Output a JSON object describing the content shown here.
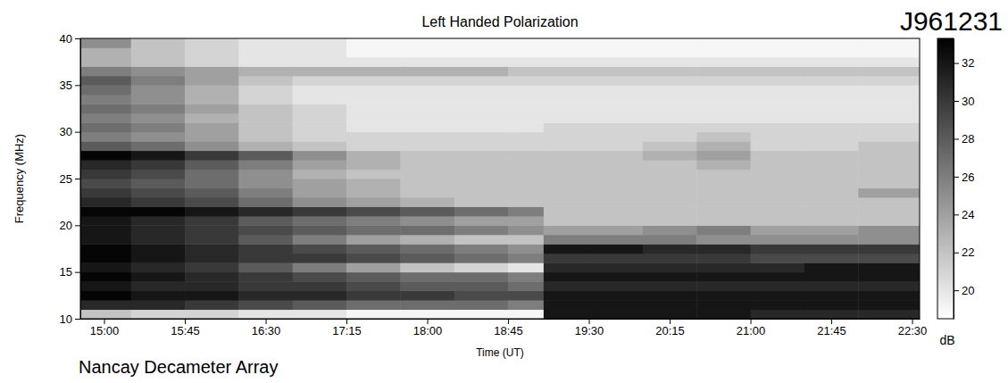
{
  "chart_data": {
    "type": "heatmap",
    "title": "Left Handed Polarization",
    "annotations": [
      "J961231",
      "Nancay Decameter Array"
    ],
    "x_label": "Time (UT)",
    "y_label": "Frequency (MHz)",
    "xlim": [
      14.78,
      22.57
    ],
    "xticks": [
      {
        "value": 15,
        "label": "15:00"
      },
      {
        "value": 15.75,
        "label": "15:45"
      },
      {
        "value": 16.5,
        "label": "16:30"
      },
      {
        "value": 17.25,
        "label": "17:15"
      },
      {
        "value": 18,
        "label": "18:00"
      },
      {
        "value": 18.75,
        "label": "18:45"
      },
      {
        "value": 19.5,
        "label": "19:30"
      },
      {
        "value": 20.25,
        "label": "20:15"
      },
      {
        "value": 21,
        "label": "21:00"
      },
      {
        "value": 21.75,
        "label": "21:45"
      },
      {
        "value": 22.5,
        "label": "22:30"
      }
    ],
    "ylim": [
      10,
      40
    ],
    "yticks": [
      10,
      15,
      20,
      25,
      30,
      35,
      40
    ],
    "x_edges": [
      14.78,
      15.25,
      15.75,
      16.25,
      16.75,
      17.25,
      17.75,
      18.25,
      18.75,
      19.08,
      19.5,
      20,
      20.5,
      21,
      21.5,
      22,
      22.57
    ],
    "y_edges": [
      10,
      11,
      12,
      13,
      14,
      15,
      16,
      17,
      18,
      19,
      20,
      21,
      22,
      23,
      24,
      25,
      26,
      27,
      28,
      29,
      30,
      31,
      32,
      33,
      34,
      35,
      36,
      37,
      38,
      39,
      40
    ],
    "cells": [
      [
        22,
        21,
        21,
        20,
        20,
        19,
        19,
        19,
        19,
        32,
        32,
        32,
        32,
        31,
        31,
        31
      ],
      [
        31,
        31,
        30,
        29,
        28,
        27,
        27,
        27,
        26,
        32,
        32,
        32,
        32,
        32,
        32,
        32
      ],
      [
        33,
        32,
        32,
        31,
        31,
        30,
        30,
        29,
        29,
        32,
        32,
        32,
        32,
        32,
        32,
        32
      ],
      [
        32,
        31,
        31,
        30,
        30,
        29,
        28,
        28,
        27,
        31,
        31,
        31,
        31,
        31,
        31,
        31
      ],
      [
        33,
        32,
        31,
        30,
        29,
        28,
        27,
        27,
        26,
        32,
        32,
        32,
        32,
        32,
        32,
        32
      ],
      [
        32,
        31,
        30,
        28,
        26,
        24,
        22,
        21,
        20,
        31,
        31,
        31,
        31,
        31,
        32,
        32
      ],
      [
        33,
        32,
        31,
        30,
        30,
        29,
        28,
        27,
        26,
        30,
        30,
        30,
        30,
        29,
        29,
        29
      ],
      [
        33,
        32,
        31,
        30,
        29,
        28,
        27,
        26,
        25,
        32,
        32,
        31,
        31,
        30,
        30,
        30
      ],
      [
        32,
        31,
        30,
        28,
        26,
        24,
        23,
        22,
        22,
        26,
        26,
        26,
        25,
        25,
        25,
        25
      ],
      [
        32,
        31,
        30,
        29,
        28,
        27,
        27,
        26,
        25,
        24,
        24,
        25,
        26,
        24,
        24,
        25
      ],
      [
        32,
        31,
        30,
        28,
        27,
        26,
        25,
        24,
        24,
        22,
        22,
        22,
        22,
        22,
        22,
        22
      ],
      [
        33,
        33,
        32,
        31,
        30,
        29,
        28,
        27,
        26,
        22,
        22,
        22,
        22,
        22,
        22,
        22
      ],
      [
        31,
        30,
        29,
        27,
        25,
        24,
        23,
        22,
        22,
        22,
        22,
        22,
        22,
        22,
        22,
        22
      ],
      [
        30,
        29,
        28,
        26,
        24,
        23,
        22,
        22,
        22,
        22,
        22,
        22,
        22,
        22,
        22,
        24
      ],
      [
        29,
        28,
        27,
        25,
        24,
        23,
        22,
        22,
        22,
        22,
        22,
        22,
        22,
        22,
        22,
        22
      ],
      [
        30,
        29,
        27,
        25,
        23,
        22,
        22,
        22,
        22,
        22,
        22,
        22,
        22,
        22,
        22,
        22
      ],
      [
        31,
        30,
        28,
        26,
        24,
        23,
        22,
        22,
        22,
        22,
        22,
        22,
        23,
        22,
        22,
        22
      ],
      [
        33,
        32,
        30,
        28,
        25,
        23,
        22,
        22,
        22,
        22,
        22,
        23,
        24,
        22,
        22,
        22
      ],
      [
        28,
        27,
        25,
        23,
        22,
        21,
        21,
        21,
        21,
        21,
        21,
        22,
        23,
        21,
        21,
        22
      ],
      [
        26,
        25,
        24,
        22,
        21,
        21,
        21,
        21,
        21,
        21,
        21,
        21,
        22,
        21,
        21,
        21
      ],
      [
        27,
        26,
        24,
        22,
        21,
        20,
        20,
        20,
        20,
        21,
        21,
        21,
        21,
        21,
        21,
        21
      ],
      [
        26,
        25,
        23,
        22,
        21,
        20,
        20,
        20,
        20,
        20,
        20,
        20,
        20,
        20,
        20,
        20
      ],
      [
        27,
        26,
        24,
        22,
        21,
        20,
        20,
        20,
        20,
        20,
        20,
        20,
        20,
        20,
        20,
        20
      ],
      [
        26,
        25,
        23,
        21,
        20,
        20,
        20,
        20,
        20,
        20,
        20,
        20,
        20,
        20,
        20,
        20
      ],
      [
        27,
        25,
        23,
        21,
        20,
        20,
        20,
        20,
        20,
        20,
        20,
        20,
        20,
        20,
        20,
        20
      ],
      [
        28,
        26,
        24,
        22,
        21,
        21,
        21,
        21,
        21,
        21,
        21,
        21,
        21,
        21,
        21,
        21
      ],
      [
        26,
        25,
        24,
        23,
        23,
        23,
        23,
        23,
        22,
        22,
        22,
        22,
        22,
        22,
        22,
        22
      ],
      [
        23,
        22,
        21,
        20,
        20,
        20,
        20,
        20,
        20,
        20,
        20,
        20,
        20,
        20,
        20,
        20
      ],
      [
        23,
        22,
        21,
        20,
        20,
        19,
        19,
        19,
        19,
        19,
        19,
        19,
        19,
        19,
        19,
        19
      ],
      [
        25,
        22,
        21,
        20,
        20,
        19,
        19,
        19,
        19,
        19,
        19,
        19,
        19,
        19,
        19,
        19
      ]
    ],
    "colorbar_range": [
      18.5,
      33.3
    ],
    "colorbar_ticks": [
      20,
      22,
      24,
      26,
      28,
      30,
      32
    ],
    "colorbar_label": "dB"
  }
}
